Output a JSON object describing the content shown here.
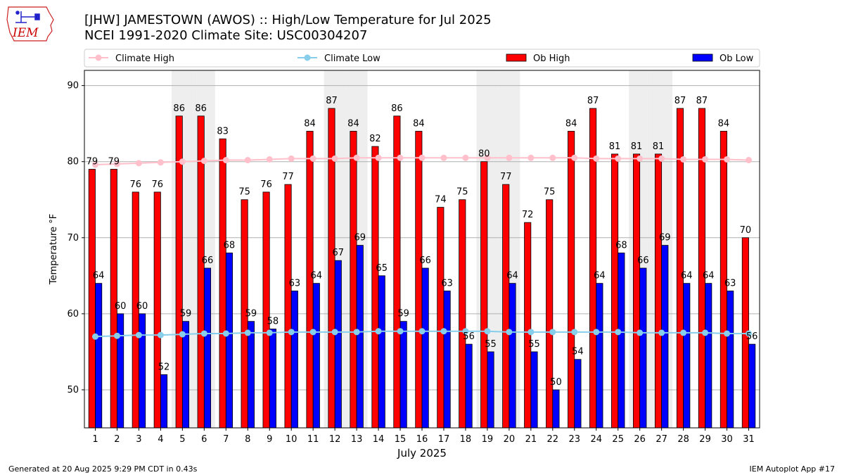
{
  "header": {
    "title_line1": "[JHW] JAMESTOWN (AWOS) :: High/Low Temperature for Jul 2025",
    "title_line2": "NCEI 1991-2020 Climate Site: USC00304207"
  },
  "logo": {
    "text": "IEM",
    "color": "#cc0000"
  },
  "footer": {
    "left": "Generated at 20 Aug 2025 9:29 PM CDT in 0.43s",
    "right": "IEM Autoplot App #17"
  },
  "chart_data": {
    "type": "bar",
    "xlabel": "July 2025",
    "ylabel": "Temperature °F",
    "ylim": [
      45,
      92
    ],
    "yticks": [
      50,
      60,
      70,
      80,
      90
    ],
    "grid": true,
    "legend_position": "top",
    "categories": [
      "1",
      "2",
      "3",
      "4",
      "5",
      "6",
      "7",
      "8",
      "9",
      "10",
      "11",
      "12",
      "13",
      "14",
      "15",
      "16",
      "17",
      "18",
      "19",
      "20",
      "21",
      "22",
      "23",
      "24",
      "25",
      "26",
      "27",
      "28",
      "29",
      "30",
      "31"
    ],
    "weekend_shaded_days": [
      5,
      6,
      12,
      13,
      19,
      20,
      26,
      27
    ],
    "series": [
      {
        "name": "Ob High",
        "kind": "bar",
        "color": "#ff0000",
        "values": [
          79,
          79,
          76,
          76,
          86,
          86,
          83,
          75,
          76,
          77,
          84,
          87,
          84,
          82,
          86,
          84,
          74,
          75,
          80,
          77,
          72,
          75,
          84,
          87,
          81,
          81,
          81,
          87,
          87,
          84,
          70
        ]
      },
      {
        "name": "Ob Low",
        "kind": "bar",
        "color": "#0000ff",
        "values": [
          64,
          60,
          60,
          52,
          59,
          66,
          68,
          59,
          58,
          63,
          64,
          67,
          69,
          65,
          59,
          66,
          63,
          56,
          55,
          64,
          55,
          50,
          54,
          64,
          68,
          66,
          69,
          64,
          64,
          63,
          56
        ]
      },
      {
        "name": "Climate High",
        "kind": "line",
        "color": "#ffc0cb",
        "values": [
          79.6,
          79.7,
          79.8,
          79.9,
          80.0,
          80.1,
          80.2,
          80.2,
          80.3,
          80.4,
          80.4,
          80.4,
          80.5,
          80.5,
          80.5,
          80.5,
          80.5,
          80.5,
          80.5,
          80.5,
          80.5,
          80.5,
          80.5,
          80.4,
          80.4,
          80.4,
          80.4,
          80.3,
          80.3,
          80.3,
          80.2
        ]
      },
      {
        "name": "Climate Low",
        "kind": "line",
        "color": "#87ceeb",
        "values": [
          57.0,
          57.1,
          57.2,
          57.2,
          57.3,
          57.4,
          57.4,
          57.5,
          57.5,
          57.6,
          57.6,
          57.6,
          57.6,
          57.7,
          57.7,
          57.7,
          57.7,
          57.7,
          57.7,
          57.6,
          57.6,
          57.6,
          57.6,
          57.6,
          57.6,
          57.5,
          57.5,
          57.5,
          57.5,
          57.4,
          57.4
        ]
      }
    ]
  }
}
